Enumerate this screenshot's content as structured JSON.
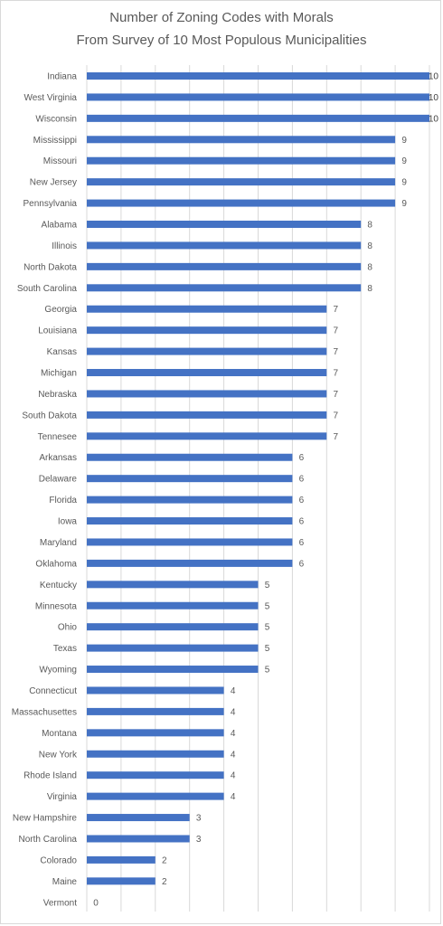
{
  "chart_data": {
    "type": "bar",
    "orientation": "horizontal",
    "title_lines": [
      "Number of Zoning Codes with Morals",
      "From Survey of 10 Most Populous Municipalities"
    ],
    "categories": [
      "Indiana",
      "West Virginia",
      "Wisconsin",
      "Mississippi",
      "Missouri",
      "New Jersey",
      "Pennsylvania",
      "Alabama",
      "Illinois",
      "North Dakota",
      "South Carolina",
      "Georgia",
      "Louisiana",
      "Kansas",
      "Michigan",
      "Nebraska",
      "South Dakota",
      "Tennesee",
      "Arkansas",
      "Delaware",
      "Florida",
      "Iowa",
      "Maryland",
      "Oklahoma",
      "Kentucky",
      "Minnesota",
      "Ohio",
      "Texas",
      "Wyoming",
      "Connecticut",
      "Massachusettes",
      "Montana",
      "New York",
      "Rhode Island",
      "Virginia",
      "New Hampshire",
      "North Carolina",
      "Colorado",
      "Maine",
      "Vermont"
    ],
    "values": [
      10,
      10,
      10,
      9,
      9,
      9,
      9,
      8,
      8,
      8,
      8,
      7,
      7,
      7,
      7,
      7,
      7,
      7,
      6,
      6,
      6,
      6,
      6,
      6,
      5,
      5,
      5,
      5,
      5,
      4,
      4,
      4,
      4,
      4,
      4,
      3,
      3,
      2,
      2,
      0
    ],
    "xlim": [
      0,
      10
    ],
    "x_gridlines": true,
    "data_labels": true,
    "bar_color": "#4472c4",
    "gridline_color": "#d9d9d9",
    "text_color": "#595959"
  }
}
